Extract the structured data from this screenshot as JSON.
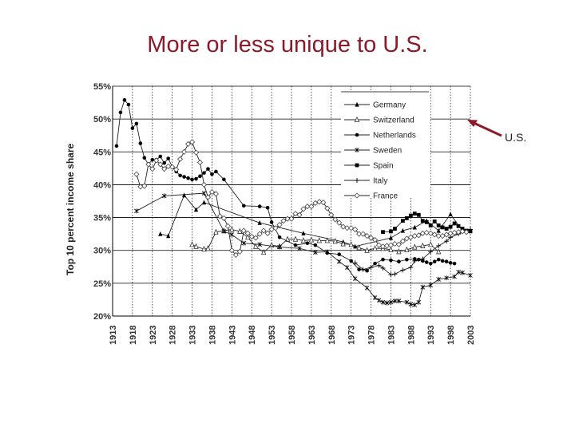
{
  "slide": {
    "title": "More or less unique to U.S."
  },
  "chart_data": {
    "type": "line",
    "title": "",
    "xlabel": "",
    "ylabel": "Top 10 percent income share",
    "xlim": [
      1913,
      2003
    ],
    "ylim": [
      20,
      55
    ],
    "x_ticks": [
      1913,
      1918,
      1923,
      1928,
      1933,
      1938,
      1943,
      1948,
      1953,
      1958,
      1963,
      1968,
      1973,
      1978,
      1983,
      1988,
      1993,
      1998,
      2003
    ],
    "y_ticks": [
      20,
      25,
      30,
      35,
      40,
      45,
      50,
      55
    ],
    "y_tick_labels": [
      "20%",
      "25%",
      "30%",
      "35%",
      "40%",
      "45%",
      "50%",
      "55%"
    ],
    "legend_position": "top-right",
    "annotation": {
      "label": "U.S.",
      "points_to": "legend"
    },
    "series": [
      {
        "name": "Germany",
        "marker": "triangle",
        "x": [
          1925,
          1927,
          1931,
          1934,
          1936,
          1950,
          1961,
          1971,
          1974,
          1983,
          1986,
          1989,
          1992,
          1995,
          1998,
          2001
        ],
        "y": [
          32.5,
          32.2,
          38.4,
          36.2,
          37.3,
          34.2,
          32.6,
          31.3,
          30.6,
          31.9,
          33.0,
          33.5,
          34.5,
          33.0,
          35.5,
          33.0
        ]
      },
      {
        "name": "Switzerland",
        "marker": "triangle-open",
        "x": [
          1933,
          1934,
          1936,
          1937,
          1939,
          1941,
          1943,
          1945,
          1947,
          1949,
          1951,
          1953,
          1955,
          1957,
          1959,
          1961,
          1963,
          1965,
          1967,
          1969,
          1971,
          1973,
          1975,
          1977,
          1979,
          1981,
          1983,
          1985,
          1987,
          1989,
          1991,
          1993,
          1995
        ],
        "y": [
          30.9,
          30.6,
          30.2,
          30.3,
          32.8,
          33.0,
          33.2,
          32.9,
          32.0,
          30.6,
          29.7,
          30.8,
          30.6,
          31.7,
          31.7,
          31.5,
          31.6,
          31.5,
          31.5,
          31.4,
          31.0,
          30.9,
          30.4,
          30.0,
          30.3,
          30.3,
          30.1,
          29.8,
          30.1,
          30.5,
          30.7,
          30.9,
          29.8
        ]
      },
      {
        "name": "Netherlands",
        "marker": "circle",
        "x": [
          1914,
          1915,
          1916,
          1917,
          1918,
          1919,
          1920,
          1921,
          1922,
          1923,
          1924,
          1925,
          1926,
          1927,
          1928,
          1929,
          1930,
          1931,
          1932,
          1933,
          1934,
          1935,
          1936,
          1937,
          1938,
          1939,
          1941,
          1946,
          1950,
          1952,
          1953,
          1955,
          1959,
          1962,
          1964,
          1967,
          1970,
          1973,
          1975,
          1977,
          1979,
          1981,
          1983,
          1985,
          1987,
          1989,
          1990,
          1991,
          1992,
          1993,
          1994,
          1995,
          1996,
          1997,
          1998,
          1999
        ],
        "y": [
          45.9,
          51.0,
          52.9,
          52.2,
          48.6,
          49.3,
          46.3,
          44.1,
          43.1,
          43.8,
          43.8,
          44.3,
          43.3,
          44.0,
          42.7,
          42.0,
          41.4,
          41.2,
          41.0,
          40.8,
          40.9,
          41.3,
          41.8,
          42.4,
          41.6,
          42.0,
          40.8,
          36.8,
          36.7,
          36.5,
          34.3,
          32.0,
          30.8,
          31.1,
          30.8,
          29.6,
          29.4,
          28.4,
          27.1,
          26.9,
          28.0,
          28.6,
          28.5,
          28.3,
          28.6,
          28.7,
          28.6,
          28.4,
          28.2,
          28.0,
          28.3,
          28.6,
          28.4,
          28.3,
          28.1,
          28.0
        ]
      },
      {
        "name": "Sweden",
        "marker": "star",
        "x": [
          1919,
          1926,
          1936,
          1941,
          1943,
          1946,
          1950,
          1955,
          1960,
          1964,
          1967,
          1970,
          1972,
          1974,
          1977,
          1979,
          1980,
          1981,
          1982,
          1983,
          1984,
          1985,
          1987,
          1988,
          1989,
          1990,
          1991,
          1993,
          1995,
          1997,
          1999,
          2000,
          2001,
          2003
        ],
        "y": [
          36.0,
          38.3,
          38.7,
          32.9,
          32.4,
          31.1,
          30.9,
          30.5,
          30.3,
          29.7,
          29.8,
          28.3,
          27.4,
          25.7,
          24.3,
          22.8,
          22.4,
          22.1,
          22.0,
          22.1,
          22.3,
          22.3,
          22.1,
          21.8,
          21.7,
          22.1,
          24.4,
          24.7,
          25.6,
          25.8,
          26.0,
          26.7,
          26.6,
          26.2
        ]
      },
      {
        "name": "Spain",
        "marker": "square",
        "x": [
          1981,
          1983,
          1984,
          1986,
          1987,
          1988,
          1989,
          1990,
          1991,
          1992,
          1993,
          1994,
          1995,
          1996,
          1997,
          1998,
          1999,
          2000,
          2001,
          2002,
          2003
        ],
        "y": [
          32.8,
          32.9,
          33.3,
          34.5,
          34.9,
          35.3,
          35.6,
          35.4,
          34.5,
          34.3,
          33.8,
          34.4,
          33.8,
          33.5,
          33.3,
          33.6,
          34.1,
          33.7,
          33.3,
          33.0,
          32.9
        ]
      },
      {
        "name": "Italy",
        "marker": "plus",
        "x": [
          1974,
          1976,
          1978,
          1980,
          1981,
          1983,
          1984,
          1986,
          1988,
          1989,
          1991,
          1993,
          1995,
          1997,
          1998,
          2000,
          2003
        ],
        "y": [
          28.1,
          27.1,
          27.4,
          27.7,
          27.3,
          26.3,
          26.4,
          27.0,
          27.4,
          28.4,
          28.7,
          29.8,
          30.7,
          31.4,
          32.0,
          32.5,
          33.2
        ]
      },
      {
        "name": "France",
        "marker": "diamond-open",
        "x": [
          1919,
          1920,
          1921,
          1922,
          1923,
          1924,
          1925,
          1926,
          1927,
          1928,
          1929,
          1930,
          1931,
          1932,
          1933,
          1934,
          1935,
          1936,
          1937,
          1938,
          1939,
          1940,
          1941,
          1942,
          1943,
          1944,
          1945,
          1946,
          1947,
          1948,
          1949,
          1950,
          1951,
          1952,
          1953,
          1954,
          1955,
          1956,
          1957,
          1958,
          1959,
          1960,
          1961,
          1962,
          1963,
          1964,
          1965,
          1966,
          1967,
          1968,
          1969,
          1970,
          1971,
          1972,
          1973,
          1974,
          1975,
          1976,
          1977,
          1978,
          1979,
          1980,
          1981,
          1982,
          1983,
          1984,
          1985,
          1986,
          1987,
          1988,
          1989,
          1990,
          1991,
          1992,
          1993,
          1994,
          1995,
          1996,
          1997,
          1998,
          1999,
          2000,
          2001,
          2002
        ],
        "y": [
          41.6,
          39.7,
          39.8,
          43.1,
          42.4,
          43.7,
          43.1,
          42.4,
          42.8,
          42.7,
          42.3,
          43.9,
          45.0,
          46.2,
          46.5,
          44.9,
          43.4,
          40.0,
          38.1,
          38.9,
          38.6,
          35.2,
          34.9,
          33.7,
          30.0,
          29.3,
          29.8,
          33.0,
          32.6,
          32.1,
          31.9,
          32.5,
          33.0,
          32.6,
          33.2,
          33.4,
          33.9,
          34.5,
          34.8,
          34.8,
          35.6,
          35.4,
          36.3,
          36.7,
          36.7,
          37.2,
          37.4,
          37.3,
          36.4,
          35.4,
          34.7,
          34.2,
          33.6,
          33.4,
          33.4,
          33.2,
          32.5,
          32.5,
          32.2,
          31.9,
          31.6,
          30.8,
          30.6,
          30.7,
          30.8,
          31.0,
          30.9,
          31.4,
          31.8,
          32.0,
          32.2,
          32.3,
          32.6,
          32.7,
          32.6,
          32.4,
          32.2,
          32.2,
          32.4,
          32.6,
          32.7,
          32.8,
          32.9,
          32.8
        ]
      }
    ]
  }
}
